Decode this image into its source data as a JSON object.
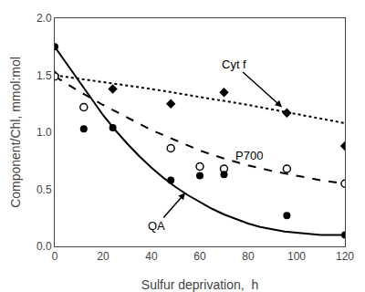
{
  "chart_data": {
    "type": "line",
    "xlabel": "Sulfur deprivation,  h",
    "ylabel": "Component/Chl, mmol:mol",
    "xlim": [
      0,
      120
    ],
    "ylim": [
      0,
      2
    ],
    "xticks": [
      0,
      20,
      40,
      60,
      80,
      100,
      120
    ],
    "yticks": [
      {
        "value": 0,
        "label": "0.0"
      },
      0.5,
      {
        "value": 1,
        "label": "1.0"
      },
      1.5,
      {
        "value": 2,
        "label": "2.0"
      }
    ],
    "grid": false,
    "series": [
      {
        "type": "line",
        "line_style": "dot",
        "color": "black",
        "x": [
          0,
          20,
          40,
          60,
          80,
          100,
          120
        ],
        "values": [
          1.5,
          1.44,
          1.38,
          1.31,
          1.24,
          1.16,
          1.08
        ]
      },
      {
        "type": "scatter",
        "marker": "diamond",
        "color": "black",
        "x": [
          0,
          24,
          48,
          70,
          96,
          120
        ],
        "values": [
          1.5,
          1.38,
          1.25,
          1.35,
          1.17,
          0.88
        ]
      },
      {
        "type": "line",
        "line_style": "dash",
        "color": "black",
        "x": [
          0,
          10,
          20,
          30,
          40,
          50,
          60,
          70,
          80,
          90,
          100,
          110,
          120
        ],
        "values": [
          1.49,
          1.36,
          1.24,
          1.13,
          1.02,
          0.93,
          0.84,
          0.77,
          0.71,
          0.66,
          0.62,
          0.58,
          0.55
        ]
      },
      {
        "type": "scatter",
        "marker": "circle-open",
        "color": "black",
        "x": [
          0,
          12,
          48,
          60,
          70,
          96,
          120
        ],
        "values": [
          1.49,
          1.22,
          0.86,
          0.7,
          0.68,
          0.68,
          0.55
        ]
      },
      {
        "type": "line",
        "line_style": "solid",
        "color": "black",
        "x": [
          0,
          5,
          10,
          15,
          20,
          25,
          30,
          35,
          40,
          45,
          50,
          55,
          60,
          65,
          70,
          75,
          80,
          85,
          90,
          95,
          100,
          105,
          110,
          115,
          120
        ],
        "values": [
          1.75,
          1.6,
          1.44,
          1.29,
          1.15,
          1.02,
          0.9,
          0.79,
          0.69,
          0.6,
          0.52,
          0.45,
          0.39,
          0.33,
          0.28,
          0.24,
          0.2,
          0.17,
          0.15,
          0.13,
          0.12,
          0.11,
          0.1,
          0.1,
          0.1
        ]
      },
      {
        "type": "scatter",
        "marker": "circle",
        "color": "black",
        "x": [
          0,
          12,
          24,
          48,
          60,
          70,
          96,
          120
        ],
        "values": [
          1.75,
          1.03,
          1.04,
          0.58,
          0.62,
          0.63,
          0.27,
          0.1
        ]
      }
    ],
    "annotations": [
      {
        "text": "QA",
        "x": 42,
        "y": 0.18,
        "arrow_x": 54,
        "arrow_y": 0.47
      },
      {
        "text": "P700",
        "x": 74,
        "y": 0.795
      },
      {
        "text": "Cyt f",
        "x": 74,
        "y": 1.6,
        "arrow_x": 94,
        "arrow_y": 1.22
      }
    ]
  }
}
